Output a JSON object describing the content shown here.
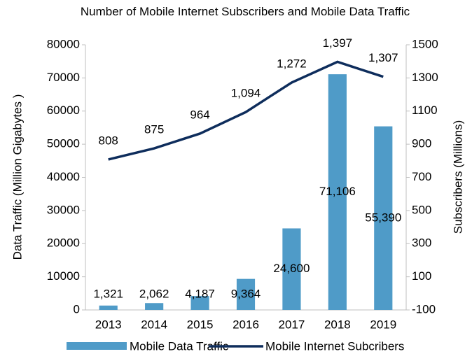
{
  "chart_data": {
    "type": "bar+line",
    "title": "Number of Mobile Internet Subscribers and Mobile Data Traffic",
    "ylabel": "Data Traffic (Million Gigabytes )",
    "y2label": "Subscribers (Millions)",
    "categories": [
      "2013",
      "2014",
      "2015",
      "2016",
      "2017",
      "2018",
      "2019"
    ],
    "series": [
      {
        "name": "Mobile Data Traffic",
        "type": "bar",
        "color": "#4f9bc8",
        "values": [
          1321,
          2062,
          4187,
          9364,
          24600,
          71106,
          55390
        ],
        "value_labels": [
          "1,321",
          "2,062",
          "4,187",
          "9,364",
          "24,600",
          "71,106",
          "55,390"
        ]
      },
      {
        "name": "Mobile Internet Subcribers",
        "type": "line",
        "axis": "y2",
        "color": "#0e2d5c",
        "values": [
          808,
          875,
          964,
          1094,
          1272,
          1397,
          1307
        ],
        "value_labels": [
          "808",
          "875",
          "964",
          "1,094",
          "1,272",
          "1,397",
          "1,307"
        ]
      }
    ],
    "ylim": [
      0,
      80000
    ],
    "yticks": [
      0,
      10000,
      20000,
      30000,
      40000,
      50000,
      60000,
      70000,
      80000
    ],
    "y2lim": [
      -100,
      1500
    ],
    "y2ticks": [
      -100,
      100,
      300,
      500,
      700,
      900,
      1100,
      1300,
      1500
    ],
    "legend": "bottom"
  }
}
